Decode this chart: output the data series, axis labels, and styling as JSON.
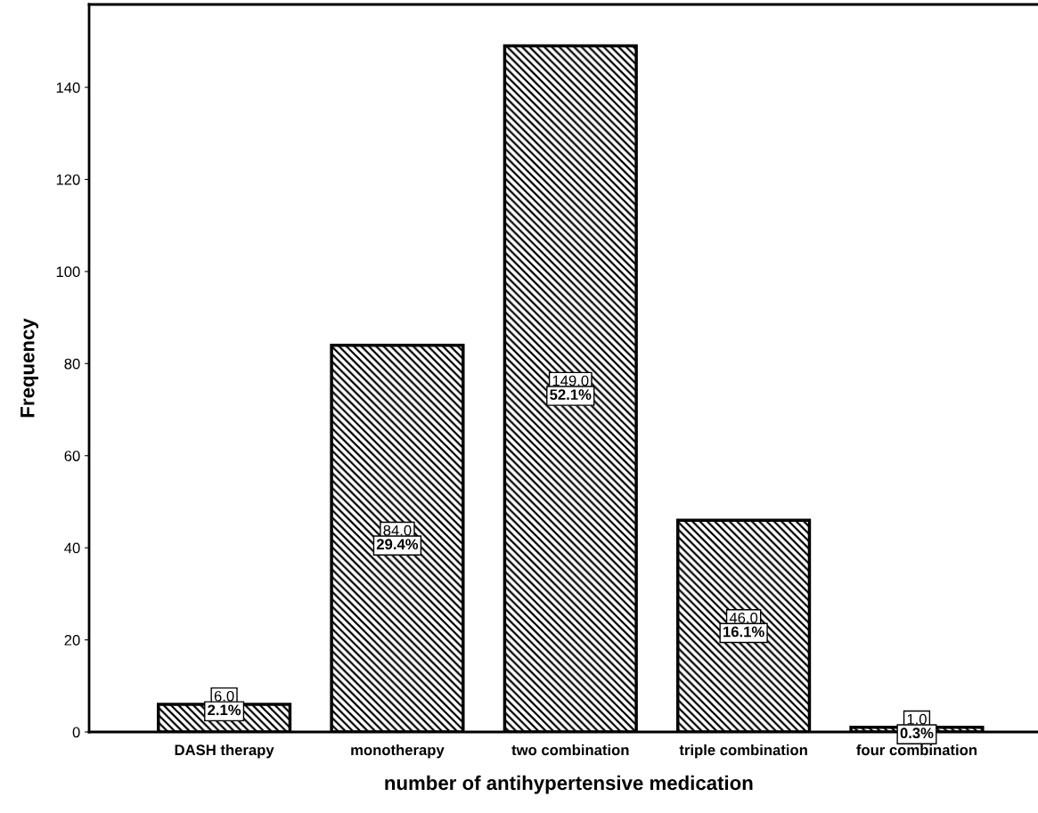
{
  "chart_data": {
    "type": "bar",
    "xlabel": "number of antihypertensive medication",
    "ylabel": "Frequency",
    "categories": [
      "DASH therapy",
      "monotherapy",
      "two combination",
      "triple combination",
      "four combination"
    ],
    "values": [
      6,
      84,
      149,
      46,
      1
    ],
    "value_labels": [
      "6.0\n2.1%",
      "84.0\n29.4%",
      "149.0\n52.1%",
      "46.0\n16.1%",
      "1.0\n0.3%"
    ],
    "color": "#000000",
    "ylim": [
      0,
      158
    ],
    "yticks": [
      0,
      20,
      40,
      60,
      80,
      100,
      120,
      140
    ],
    "grid": false,
    "legend": false
  }
}
